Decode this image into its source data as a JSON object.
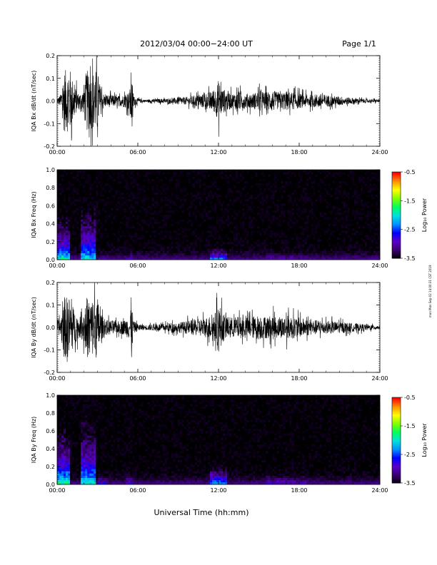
{
  "header": {
    "title": "2012/03/04  00:00−24:00 UT",
    "page": "Page 1/1"
  },
  "footer": {
    "xlabel": "Universal Time (hh:mm)",
    "stamp": "mon Mon Sep 02 14:00:31 CST 2019"
  },
  "chart_data": [
    {
      "type": "line",
      "ylabel": "IQA Bx dB/dt (nT/sec)",
      "xlim": [
        0,
        24
      ],
      "ylim": [
        -0.2,
        0.2
      ],
      "yticks": [
        "-0.2",
        "-0.1",
        "0.0",
        "0.1",
        "0.2"
      ],
      "xticks": [
        "00:00",
        "06:00",
        "12:00",
        "18:00",
        "24:00"
      ],
      "envelope": {
        "x": [
          0,
          0.3,
          0.5,
          1.0,
          1.2,
          1.6,
          1.9,
          2.2,
          2.5,
          2.8,
          3.0,
          3.2,
          3.5,
          4.0,
          4.5,
          5.0,
          5.4,
          5.5,
          5.7,
          6.0,
          6.5,
          7.0,
          7.5,
          8.0,
          8.5,
          9.0,
          9.5,
          10.0,
          10.5,
          11.0,
          11.5,
          11.8,
          12.0,
          12.3,
          12.7,
          13.0,
          13.5,
          14.0,
          14.5,
          15.0,
          15.5,
          16.0,
          16.5,
          17.0,
          17.5,
          18.0,
          18.5,
          19.0,
          19.5,
          20.0,
          20.5,
          21.0,
          21.5,
          22.0,
          22.5,
          23.0,
          23.5,
          24.0
        ],
        "amplitude": [
          0.02,
          0.06,
          0.25,
          0.25,
          0.15,
          0.06,
          0.08,
          0.25,
          0.22,
          0.25,
          0.25,
          0.12,
          0.05,
          0.05,
          0.04,
          0.05,
          0.08,
          0.25,
          0.04,
          0.02,
          0.01,
          0.015,
          0.015,
          0.02,
          0.02,
          0.03,
          0.03,
          0.04,
          0.05,
          0.06,
          0.08,
          0.11,
          0.17,
          0.1,
          0.08,
          0.06,
          0.08,
          0.06,
          0.06,
          0.08,
          0.07,
          0.09,
          0.06,
          0.08,
          0.07,
          0.06,
          0.05,
          0.05,
          0.06,
          0.05,
          0.04,
          0.04,
          0.03,
          0.025,
          0.02,
          0.015,
          0.015,
          0.01
        ]
      }
    },
    {
      "type": "heatmap",
      "ylabel": "IQA Bx Freq (Hz)",
      "xlim": [
        0,
        24
      ],
      "ylim": [
        0,
        1.0
      ],
      "yticks": [
        "0.0",
        "0.2",
        "0.4",
        "0.6",
        "0.8",
        "1.0"
      ],
      "xticks": [
        "00:00",
        "06:00",
        "12:00",
        "18:00",
        "24:00"
      ],
      "colorbar": {
        "label": "Log₁₀ Power",
        "range": [
          -3.5,
          -0.5
        ],
        "ticks": [
          "-0.5",
          "-1.5",
          "-2.5",
          "-3.5"
        ],
        "colors": [
          "#000000",
          "#3a0070",
          "#5a00c8",
          "#0000ff",
          "#0090ff",
          "#00e0e0",
          "#00ff60",
          "#80ff00",
          "#ffff00",
          "#ff9000",
          "#ff0000"
        ]
      },
      "features": [
        {
          "hours": [
            0.0,
            1.0
          ],
          "max_freq": 0.55,
          "peak": -1.6
        },
        {
          "hours": [
            1.8,
            2.8
          ],
          "max_freq": 0.9,
          "peak": -1.8
        },
        {
          "hours": [
            3.0,
            3.6
          ],
          "max_freq": 0.2,
          "peak": -2.4
        },
        {
          "hours": [
            5.2,
            5.6
          ],
          "max_freq": 0.5,
          "peak": -2.6
        },
        {
          "hours": [
            11.3,
            12.6
          ],
          "max_freq": 0.3,
          "peak": -2.0
        },
        {
          "hours": [
            15.5,
            18.5
          ],
          "max_freq": 0.5,
          "peak": -2.7
        }
      ]
    },
    {
      "type": "line",
      "ylabel": "IQA By dB/dt (nT/sec)",
      "xlim": [
        0,
        24
      ],
      "ylim": [
        -0.2,
        0.2
      ],
      "yticks": [
        "-0.2",
        "-0.1",
        "0.0",
        "0.1",
        "0.2"
      ],
      "xticks": [
        "00:00",
        "06:00",
        "12:00",
        "18:00",
        "24:00"
      ],
      "envelope": {
        "x": [
          0,
          0.3,
          0.5,
          1.0,
          1.2,
          1.6,
          1.9,
          2.2,
          2.5,
          2.8,
          3.0,
          3.2,
          3.5,
          4.0,
          4.5,
          5.0,
          5.4,
          5.5,
          5.7,
          6.0,
          6.5,
          7.0,
          7.5,
          8.0,
          8.5,
          9.0,
          9.5,
          10.0,
          10.5,
          11.0,
          11.5,
          11.8,
          12.0,
          12.3,
          12.7,
          13.0,
          13.5,
          14.0,
          14.5,
          15.0,
          15.5,
          16.0,
          16.5,
          17.0,
          17.5,
          18.0,
          18.5,
          19.0,
          19.5,
          20.0,
          20.5,
          21.0,
          21.5,
          22.0,
          22.5,
          23.0,
          23.5,
          24.0
        ],
        "amplitude": [
          0.03,
          0.1,
          0.25,
          0.25,
          0.16,
          0.08,
          0.1,
          0.25,
          0.23,
          0.25,
          0.25,
          0.14,
          0.06,
          0.06,
          0.05,
          0.06,
          0.1,
          0.25,
          0.05,
          0.03,
          0.02,
          0.025,
          0.03,
          0.03,
          0.04,
          0.04,
          0.05,
          0.06,
          0.07,
          0.08,
          0.1,
          0.13,
          0.21,
          0.12,
          0.09,
          0.08,
          0.09,
          0.08,
          0.09,
          0.1,
          0.09,
          0.1,
          0.08,
          0.1,
          0.09,
          0.08,
          0.07,
          0.06,
          0.06,
          0.05,
          0.05,
          0.045,
          0.04,
          0.035,
          0.03,
          0.025,
          0.02,
          0.015
        ]
      }
    },
    {
      "type": "heatmap",
      "ylabel": "IQA By Freq (Hz)",
      "xlim": [
        0,
        24
      ],
      "ylim": [
        0,
        1.0
      ],
      "yticks": [
        "0.0",
        "0.2",
        "0.4",
        "0.6",
        "0.8",
        "1.0"
      ],
      "xticks": [
        "00:00",
        "06:00",
        "12:00",
        "18:00",
        "24:00"
      ],
      "colorbar": {
        "label": "Log₁₀ Power",
        "range": [
          -3.5,
          -0.5
        ],
        "ticks": [
          "-0.5",
          "-1.5",
          "-2.5",
          "-3.5"
        ],
        "colors": [
          "#000000",
          "#3a0070",
          "#5a00c8",
          "#0000ff",
          "#0090ff",
          "#00e0e0",
          "#00ff60",
          "#80ff00",
          "#ffff00",
          "#ff9000",
          "#ff0000"
        ]
      },
      "features": [
        {
          "hours": [
            0.0,
            1.0
          ],
          "max_freq": 0.65,
          "peak": -1.5
        },
        {
          "hours": [
            1.8,
            2.8
          ],
          "max_freq": 0.95,
          "peak": -1.7
        },
        {
          "hours": [
            3.0,
            3.6
          ],
          "max_freq": 0.3,
          "peak": -2.3
        },
        {
          "hours": [
            5.2,
            5.6
          ],
          "max_freq": 0.5,
          "peak": -2.5
        },
        {
          "hours": [
            11.3,
            12.6
          ],
          "max_freq": 0.4,
          "peak": -1.9
        },
        {
          "hours": [
            15.5,
            18.5
          ],
          "max_freq": 0.6,
          "peak": -2.6
        }
      ]
    }
  ]
}
